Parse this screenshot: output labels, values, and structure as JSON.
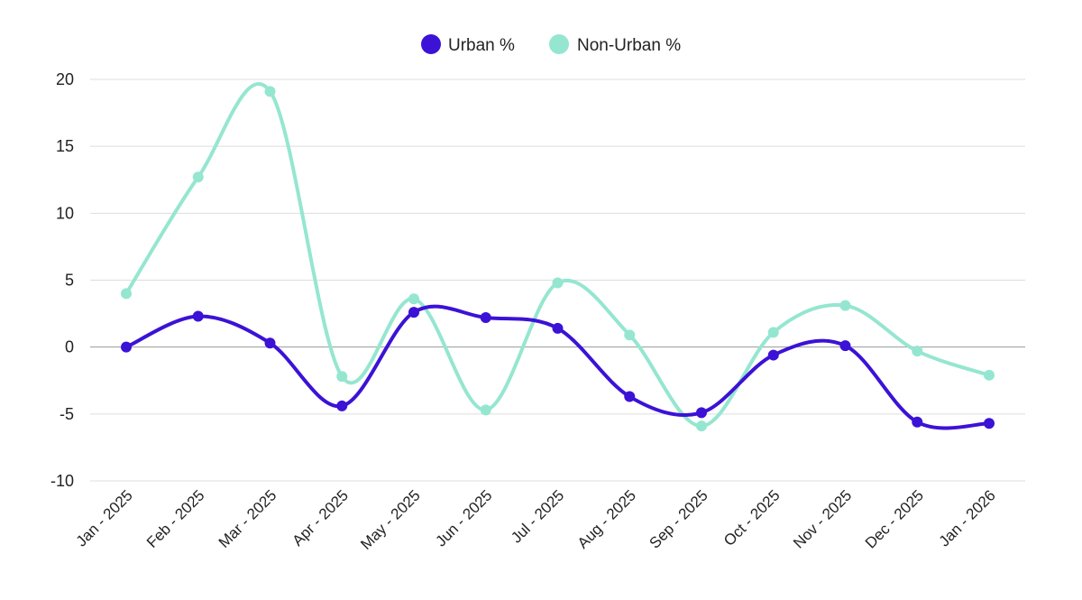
{
  "chart_data": {
    "type": "line",
    "title": "",
    "xlabel": "",
    "ylabel": "",
    "categories": [
      "Jan - 2025",
      "Feb - 2025",
      "Mar - 2025",
      "Apr - 2025",
      "May - 2025",
      "Jun - 2025",
      "Jul - 2025",
      "Aug - 2025",
      "Sep - 2025",
      "Oct - 2025",
      "Nov - 2025",
      "Dec - 2025",
      "Jan - 2026"
    ],
    "series": [
      {
        "name": "Urban %",
        "color": "#3b12d6",
        "values": [
          0.0,
          2.3,
          0.3,
          -4.4,
          2.6,
          2.2,
          1.4,
          -3.7,
          -4.9,
          -0.6,
          0.1,
          -5.6,
          -5.7
        ]
      },
      {
        "name": "Non-Urban %",
        "color": "#95e6d0",
        "values": [
          4.0,
          12.7,
          19.1,
          -2.2,
          3.6,
          -4.7,
          4.8,
          0.9,
          -5.9,
          1.1,
          3.1,
          -0.3,
          -2.1
        ]
      }
    ],
    "ylim": [
      -10,
      20
    ],
    "yticks": [
      20,
      15,
      10,
      5,
      0,
      -5,
      -10
    ],
    "ytick_labels": [
      "20",
      "15",
      "10",
      "5",
      "0",
      "-5",
      "-10"
    ],
    "grid": true,
    "legend": "top-center",
    "smooth": true
  }
}
